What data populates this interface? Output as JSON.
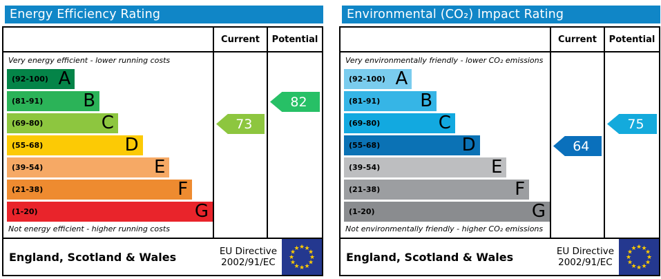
{
  "chart_data": [
    {
      "type": "bar",
      "title": "Energy Efficiency Rating",
      "subtitle_top": "Very energy efficient - lower running costs",
      "subtitle_bottom": "Not energy efficient - higher running costs",
      "categories": [
        "A",
        "B",
        "C",
        "D",
        "E",
        "F",
        "G"
      ],
      "band_ranges": [
        "92-100",
        "81-91",
        "69-80",
        "55-68",
        "39-54",
        "21-38",
        "1-20"
      ],
      "series": [
        {
          "name": "Current",
          "values": [
            73
          ],
          "band": "C"
        },
        {
          "name": "Potential",
          "values": [
            82
          ],
          "band": "B"
        }
      ],
      "footer": "England, Scotland & Wales",
      "directive": "EU Directive 2002/91/EC"
    },
    {
      "type": "bar",
      "title": "Environmental (CO₂) Impact Rating",
      "subtitle_top": "Very environmentally friendly - lower CO₂ emissions",
      "subtitle_bottom": "Not environmentally friendly - higher CO₂ emissions",
      "categories": [
        "A",
        "B",
        "C",
        "D",
        "E",
        "F",
        "G"
      ],
      "band_ranges": [
        "92-100",
        "81-91",
        "69-80",
        "55-68",
        "39-54",
        "21-38",
        "1-20"
      ],
      "series": [
        {
          "name": "Current",
          "values": [
            64
          ],
          "band": "D"
        },
        {
          "name": "Potential",
          "values": [
            75
          ],
          "band": "C"
        }
      ],
      "footer": "England, Scotland & Wales",
      "directive": "EU Directive 2002/91/EC"
    }
  ],
  "panels": [
    {
      "title": "Energy Efficiency Rating",
      "header_bg": "#1086c7",
      "columns": {
        "current": "Current",
        "potential": "Potential"
      },
      "top_note": "Very energy efficient - lower running costs",
      "bottom_note": "Not energy efficient - higher running costs",
      "bands": [
        {
          "range": "(92-100)",
          "letter": "A",
          "color": "#048448",
          "width_pct": 33
        },
        {
          "range": "(81-91)",
          "letter": "B",
          "color": "#2bb358",
          "width_pct": 45
        },
        {
          "range": "(69-80)",
          "letter": "C",
          "color": "#8dc63f",
          "width_pct": 54
        },
        {
          "range": "(55-68)",
          "letter": "D",
          "color": "#fcca05",
          "width_pct": 66
        },
        {
          "range": "(39-54)",
          "letter": "E",
          "color": "#f6a965",
          "width_pct": 79
        },
        {
          "range": "(21-38)",
          "letter": "F",
          "color": "#ee8b30",
          "width_pct": 90
        },
        {
          "range": "(1-20)",
          "letter": "G",
          "color": "#e9242b",
          "width_pct": 100
        }
      ],
      "current": {
        "value": 73,
        "band": "C",
        "color": "#8dc63f"
      },
      "potential": {
        "value": 82,
        "band": "B",
        "color": "#27c066"
      },
      "footer": {
        "region": "England, Scotland & Wales",
        "directive_line1": "EU Directive",
        "directive_line2": "2002/91/EC"
      }
    },
    {
      "title": "Environmental (CO₂) Impact Rating",
      "header_bg": "#1086c7",
      "columns": {
        "current": "Current",
        "potential": "Potential"
      },
      "top_note": "Very environmentally friendly - lower CO₂ emissions",
      "bottom_note": "Not environmentally friendly - higher CO₂ emissions",
      "bands": [
        {
          "range": "(92-100)",
          "letter": "A",
          "color": "#7accee",
          "width_pct": 33
        },
        {
          "range": "(81-91)",
          "letter": "B",
          "color": "#36b5e6",
          "width_pct": 45
        },
        {
          "range": "(69-80)",
          "letter": "C",
          "color": "#12a9e0",
          "width_pct": 54
        },
        {
          "range": "(55-68)",
          "letter": "D",
          "color": "#0b72b5",
          "width_pct": 66
        },
        {
          "range": "(39-54)",
          "letter": "E",
          "color": "#bdbec0",
          "width_pct": 79
        },
        {
          "range": "(21-38)",
          "letter": "F",
          "color": "#9c9ea1",
          "width_pct": 90
        },
        {
          "range": "(1-20)",
          "letter": "G",
          "color": "#8a8c8f",
          "width_pct": 100
        }
      ],
      "current": {
        "value": 64,
        "band": "D",
        "color": "#0a70bc"
      },
      "potential": {
        "value": 75,
        "band": "C",
        "color": "#14aadc"
      },
      "footer": {
        "region": "England, Scotland & Wales",
        "directive_line1": "EU Directive",
        "directive_line2": "2002/91/EC"
      }
    }
  ],
  "flag": {
    "bg": "#24388f",
    "star_color": "#ffcc00"
  }
}
